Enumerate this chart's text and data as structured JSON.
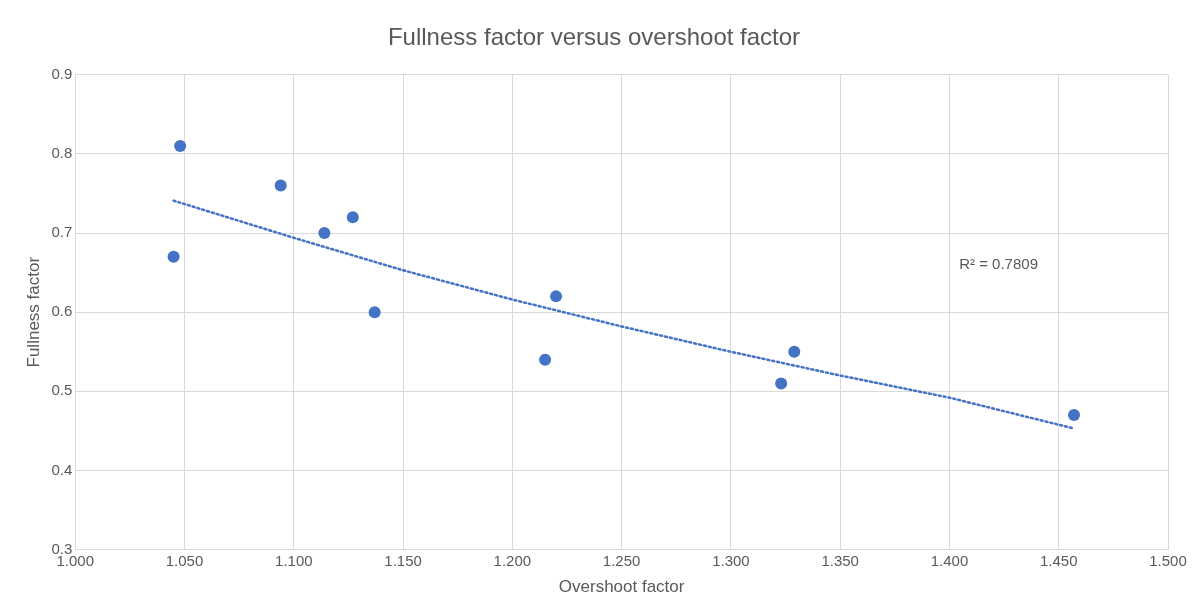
{
  "chart_data": {
    "type": "scatter",
    "title": "Fullness factor versus overshoot factor",
    "xlabel": "Overshoot factor",
    "ylabel": "Fullness factor",
    "xlim": [
      1.0,
      1.5
    ],
    "xticks": [
      {
        "value": 1.0,
        "label": "1.000"
      },
      {
        "value": 1.05,
        "label": "1.050"
      },
      {
        "value": 1.1,
        "label": "1.100"
      },
      {
        "value": 1.15,
        "label": "1.150"
      },
      {
        "value": 1.2,
        "label": "1.200"
      },
      {
        "value": 1.25,
        "label": "1.250"
      },
      {
        "value": 1.3,
        "label": "1.300"
      },
      {
        "value": 1.35,
        "label": "1.350"
      },
      {
        "value": 1.4,
        "label": "1.400"
      },
      {
        "value": 1.45,
        "label": "1.450"
      },
      {
        "value": 1.5,
        "label": "1.500"
      }
    ],
    "ylim": [
      0.3,
      0.9
    ],
    "yticks": [
      0.3,
      0.4,
      0.5,
      0.6,
      0.7,
      0.8,
      0.9
    ],
    "grid": true,
    "legend": false,
    "marker": "circle",
    "series": [
      {
        "type": "scatter",
        "color": "#4472c4",
        "x": [
          1.048,
          1.045,
          1.094,
          1.114,
          1.127,
          1.137,
          1.22,
          1.215,
          1.329,
          1.323,
          1.457
        ],
        "values": [
          0.81,
          0.67,
          0.76,
          0.7,
          0.72,
          0.6,
          0.62,
          0.54,
          0.55,
          0.51,
          0.47
        ]
      },
      {
        "type": "line",
        "color": "#4472c4",
        "line_style": "dotted",
        "marker": "none",
        "x": [
          1.045,
          1.1,
          1.15,
          1.2,
          1.25,
          1.3,
          1.35,
          1.4,
          1.457
        ],
        "values": [
          0.741,
          0.694,
          0.653,
          0.616,
          0.582,
          0.55,
          0.52,
          0.492,
          0.453
        ]
      }
    ],
    "annotations": [
      "R² = 0.7809"
    ]
  }
}
